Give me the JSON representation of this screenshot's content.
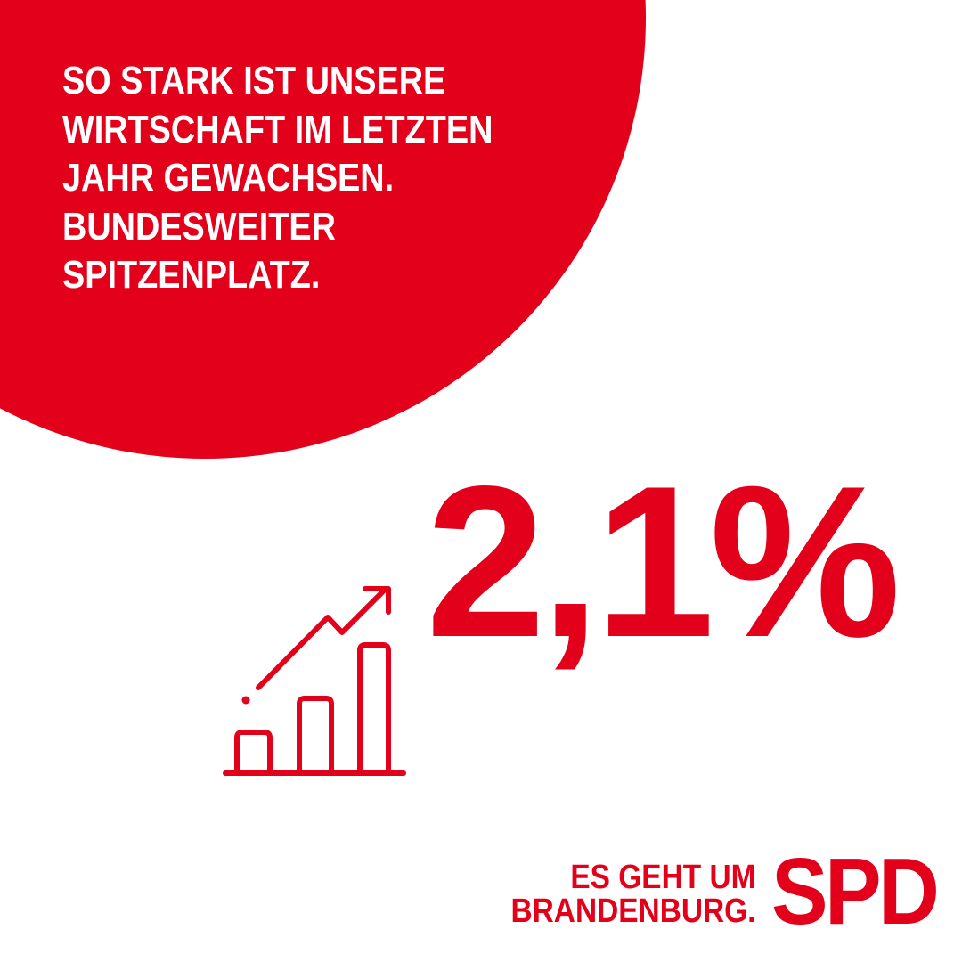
{
  "headline": {
    "lines": [
      "SO STARK IST UNSERE",
      "WIRTSCHAFT IM LETZTEN",
      "JAHR GEWACHSEN.",
      "BUNDESWEITER",
      "SPITZENPLATZ."
    ]
  },
  "stat": "2,1%",
  "slogan": {
    "lines": [
      "ES GEHT UM",
      "BRANDENBURG."
    ]
  },
  "logo": "SPD"
}
